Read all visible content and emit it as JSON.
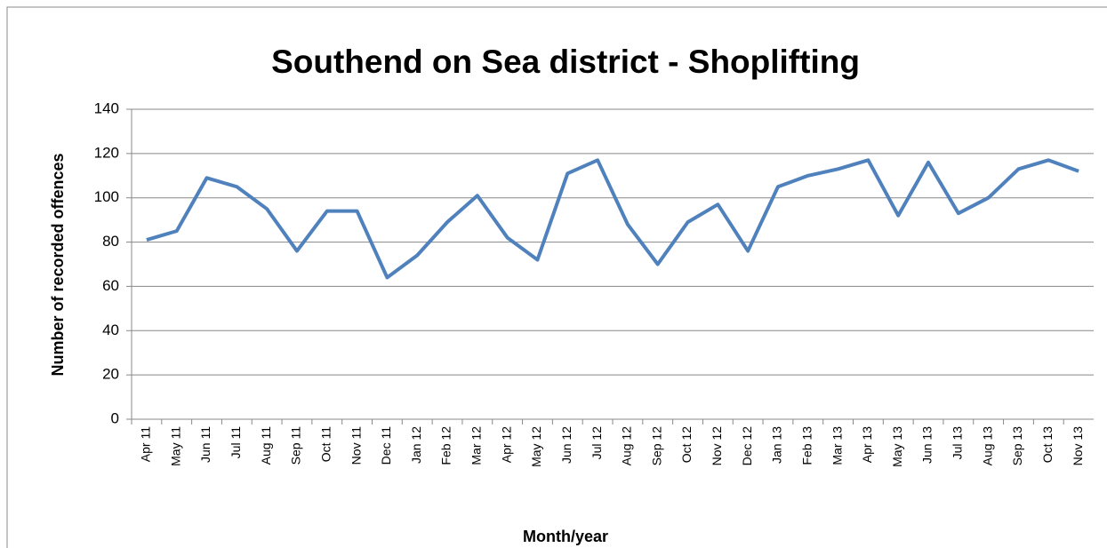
{
  "chart_data": {
    "type": "line",
    "title": "Southend on Sea district - Shoplifting",
    "x_label": "Month/year",
    "y_label": "Number of recorded offences",
    "categories": [
      "Apr 11",
      "May 11",
      "Jun 11",
      "Jul 11",
      "Aug 11",
      "Sep 11",
      "Oct 11",
      "Nov 11",
      "Dec 11",
      "Jan 12",
      "Feb 12",
      "Mar 12",
      "Apr 12",
      "May 12",
      "Jun 12",
      "Jul 12",
      "Aug 12",
      "Sep 12",
      "Oct 12",
      "Nov 12",
      "Dec 12",
      "Jan 13",
      "Feb 13",
      "Mar 13",
      "Apr 13",
      "May 13",
      "Jun 13",
      "Jul 13",
      "Aug 13",
      "Sep 13",
      "Oct 13",
      "Nov 13"
    ],
    "series": [
      {
        "name": "Shoplifting",
        "color": "#4f81bd",
        "values": [
          81,
          85,
          109,
          105,
          95,
          76,
          94,
          94,
          64,
          74,
          89,
          101,
          82,
          72,
          111,
          117,
          88,
          70,
          89,
          97,
          76,
          105,
          110,
          113,
          117,
          92,
          116,
          93,
          100,
          113,
          117,
          112
        ]
      }
    ],
    "ylim": [
      0,
      140
    ],
    "yticks": [
      0,
      20,
      40,
      60,
      80,
      100,
      120,
      140
    ],
    "grid": true
  }
}
